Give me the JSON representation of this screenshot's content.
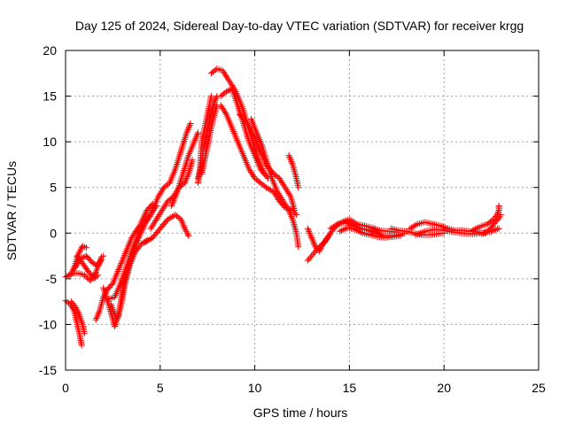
{
  "chart_data": {
    "type": "scatter",
    "title": "Day 125 of 2024, Sidereal Day-to-day VTEC variation (SDTVAR) for receiver krgg",
    "xlabel": "GPS time / hours",
    "ylabel": "SDTVAR / TECUs",
    "xlim": [
      0,
      25
    ],
    "ylim": [
      -15,
      20
    ],
    "xticks": [
      0,
      5,
      10,
      15,
      20,
      25
    ],
    "yticks": [
      -15,
      -10,
      -5,
      0,
      5,
      10,
      15,
      20
    ],
    "grid": true,
    "marker": "+",
    "series_color": "#ff0000",
    "tracks": [
      {
        "name": "arc-early-a",
        "points": [
          [
            0.0,
            -4.8
          ],
          [
            0.3,
            -4.5
          ],
          [
            0.5,
            -3.5
          ],
          [
            0.7,
            -2.2
          ],
          [
            0.9,
            -1.4
          ],
          [
            1.1,
            -1.6
          ]
        ]
      },
      {
        "name": "arc-early-b",
        "points": [
          [
            0.0,
            -7.4
          ],
          [
            0.25,
            -7.8
          ],
          [
            0.45,
            -8.5
          ],
          [
            0.6,
            -9.8
          ],
          [
            0.75,
            -11.2
          ],
          [
            0.85,
            -12.3
          ]
        ]
      },
      {
        "name": "arc-early-c",
        "points": [
          [
            0.3,
            -7.5
          ],
          [
            0.5,
            -8.0
          ],
          [
            0.7,
            -8.8
          ],
          [
            0.9,
            -10.0
          ],
          [
            1.0,
            -11.0
          ]
        ]
      },
      {
        "name": "arc-early-d",
        "points": [
          [
            0.5,
            -3.8
          ],
          [
            0.8,
            -2.8
          ],
          [
            1.1,
            -2.5
          ],
          [
            1.4,
            -3.2
          ],
          [
            1.7,
            -3.6
          ],
          [
            1.9,
            -2.9
          ]
        ]
      },
      {
        "name": "arc-early-e",
        "points": [
          [
            0.6,
            -2.5
          ],
          [
            0.9,
            -3.3
          ],
          [
            1.2,
            -4.2
          ],
          [
            1.5,
            -5.0
          ],
          [
            1.7,
            -4.6
          ]
        ]
      },
      {
        "name": "arc-early-f",
        "points": [
          [
            0.3,
            -4.4
          ],
          [
            0.7,
            -4.4
          ],
          [
            1.0,
            -4.6
          ],
          [
            1.3,
            -5.2
          ],
          [
            1.6,
            -4.3
          ],
          [
            1.9,
            -2.6
          ],
          [
            2.0,
            -2.5
          ]
        ]
      },
      {
        "name": "arc-dip-a",
        "points": [
          [
            1.6,
            -9.5
          ],
          [
            1.8,
            -8.5
          ],
          [
            2.0,
            -7.0
          ],
          [
            2.2,
            -6.2
          ],
          [
            2.5,
            -5.5
          ],
          [
            2.8,
            -4.0
          ],
          [
            3.0,
            -3.0
          ],
          [
            3.3,
            -1.5
          ],
          [
            3.5,
            -0.5
          ],
          [
            3.8,
            0.5
          ],
          [
            4.0,
            1.0
          ]
        ]
      },
      {
        "name": "arc-dip-b",
        "points": [
          [
            2.0,
            -6.0
          ],
          [
            2.3,
            -8.0
          ],
          [
            2.6,
            -10.2
          ],
          [
            2.8,
            -9.0
          ],
          [
            3.0,
            -6.5
          ],
          [
            3.2,
            -4.5
          ],
          [
            3.5,
            -2.5
          ],
          [
            3.8,
            -0.8
          ],
          [
            4.2,
            1.0
          ],
          [
            4.5,
            2.0
          ],
          [
            4.8,
            3.0
          ]
        ]
      },
      {
        "name": "arc-dip-c",
        "points": [
          [
            2.3,
            -7.2
          ],
          [
            2.6,
            -7.0
          ],
          [
            2.9,
            -5.5
          ],
          [
            3.2,
            -3.8
          ],
          [
            3.5,
            -2.0
          ],
          [
            3.8,
            -0.5
          ],
          [
            4.0,
            1.2
          ],
          [
            4.3,
            2.5
          ],
          [
            4.6,
            3.2
          ]
        ]
      },
      {
        "name": "arc-dip-d",
        "points": [
          [
            2.4,
            -7.8
          ],
          [
            2.7,
            -9.5
          ],
          [
            2.9,
            -8.2
          ],
          [
            3.1,
            -6.0
          ],
          [
            3.4,
            -3.5
          ],
          [
            3.7,
            -2.0
          ],
          [
            4.0,
            -1.2
          ],
          [
            4.3,
            -0.8
          ]
        ]
      },
      {
        "name": "arc-rise-a",
        "points": [
          [
            4.0,
            0.5
          ],
          [
            4.3,
            1.5
          ],
          [
            4.6,
            2.5
          ],
          [
            4.9,
            4.0
          ],
          [
            5.2,
            5.0
          ],
          [
            5.5,
            5.5
          ],
          [
            5.8,
            7.0
          ],
          [
            6.1,
            9.0
          ],
          [
            6.4,
            11.0
          ],
          [
            6.6,
            12.0
          ]
        ]
      },
      {
        "name": "arc-rise-b",
        "points": [
          [
            4.5,
            0.5
          ],
          [
            4.8,
            1.5
          ],
          [
            5.1,
            2.5
          ],
          [
            5.4,
            3.5
          ],
          [
            5.7,
            4.0
          ],
          [
            6.0,
            5.0
          ],
          [
            6.3,
            5.5
          ],
          [
            6.5,
            6.5
          ],
          [
            6.7,
            8.0
          ]
        ]
      },
      {
        "name": "arc-rise-c",
        "points": [
          [
            4.2,
            -1.0
          ],
          [
            4.6,
            -0.5
          ],
          [
            5.0,
            0.5
          ],
          [
            5.4,
            1.5
          ],
          [
            5.8,
            2.0
          ],
          [
            6.1,
            1.5
          ],
          [
            6.3,
            0.5
          ],
          [
            6.5,
            -0.3
          ]
        ]
      },
      {
        "name": "arc-rise-d",
        "points": [
          [
            5.6,
            3.0
          ],
          [
            5.9,
            4.5
          ],
          [
            6.2,
            6.5
          ],
          [
            6.5,
            8.5
          ],
          [
            6.8,
            10.0
          ],
          [
            7.0,
            11.0
          ]
        ]
      },
      {
        "name": "arc-rise-e",
        "points": [
          [
            7.0,
            6.0
          ],
          [
            7.2,
            7.5
          ],
          [
            7.3,
            9.5
          ],
          [
            7.5,
            11.5
          ],
          [
            7.7,
            13.0
          ],
          [
            7.9,
            14.5
          ],
          [
            8.0,
            15.0
          ]
        ]
      },
      {
        "name": "arc-rise-f",
        "points": [
          [
            7.2,
            6.5
          ],
          [
            7.4,
            8.5
          ],
          [
            7.6,
            10.5
          ],
          [
            7.8,
            12.5
          ],
          [
            8.0,
            14.0
          ]
        ]
      },
      {
        "name": "arc-rise-g",
        "points": [
          [
            7.0,
            5.5
          ],
          [
            7.1,
            7.0
          ],
          [
            7.2,
            10.0
          ],
          [
            7.4,
            12.0
          ],
          [
            7.6,
            14.0
          ],
          [
            7.7,
            15.0
          ]
        ]
      },
      {
        "name": "arc-peak-a",
        "points": [
          [
            7.7,
            17.5
          ],
          [
            8.0,
            18.0
          ],
          [
            8.3,
            17.8
          ],
          [
            8.7,
            16.5
          ],
          [
            9.0,
            15.5
          ],
          [
            9.3,
            14.0
          ],
          [
            9.6,
            12.0
          ],
          [
            9.9,
            10.0
          ],
          [
            10.2,
            8.0
          ],
          [
            10.5,
            6.5
          ]
        ]
      },
      {
        "name": "arc-peak-b",
        "points": [
          [
            8.2,
            15.0
          ],
          [
            8.5,
            15.5
          ],
          [
            8.8,
            15.8
          ],
          [
            9.1,
            14.0
          ],
          [
            9.4,
            12.0
          ],
          [
            9.7,
            10.0
          ],
          [
            10.0,
            8.5
          ],
          [
            10.3,
            7.0
          ],
          [
            10.7,
            6.0
          ]
        ]
      },
      {
        "name": "arc-peak-c",
        "points": [
          [
            8.2,
            14.0
          ],
          [
            8.5,
            13.0
          ],
          [
            8.8,
            11.5
          ],
          [
            9.1,
            10.0
          ],
          [
            9.4,
            8.5
          ],
          [
            9.7,
            7.0
          ],
          [
            10.0,
            6.0
          ],
          [
            10.3,
            5.5
          ],
          [
            10.6,
            5.0
          ],
          [
            11.0,
            4.5
          ],
          [
            11.3,
            3.5
          ],
          [
            11.6,
            2.8
          ],
          [
            12.0,
            2.5
          ],
          [
            12.2,
            2.0
          ]
        ]
      },
      {
        "name": "arc-peak-d",
        "points": [
          [
            9.2,
            13.0
          ],
          [
            9.6,
            12.0
          ],
          [
            10.0,
            10.5
          ],
          [
            10.3,
            9.0
          ],
          [
            10.6,
            7.5
          ],
          [
            11.0,
            6.5
          ],
          [
            11.3,
            6.0
          ],
          [
            11.6,
            5.0
          ],
          [
            11.9,
            4.0
          ],
          [
            12.1,
            2.5
          ]
        ]
      },
      {
        "name": "arc-peak-e",
        "points": [
          [
            9.8,
            12.5
          ],
          [
            10.1,
            11.0
          ],
          [
            10.4,
            9.5
          ],
          [
            10.6,
            8.0
          ],
          [
            10.9,
            6.0
          ],
          [
            11.2,
            4.5
          ],
          [
            11.5,
            3.5
          ],
          [
            11.8,
            2.5
          ],
          [
            12.0,
            1.5
          ],
          [
            12.2,
            0.0
          ],
          [
            12.3,
            -1.5
          ]
        ]
      },
      {
        "name": "arc-peak-f",
        "points": [
          [
            11.8,
            8.5
          ],
          [
            12.0,
            7.5
          ],
          [
            12.2,
            6.0
          ],
          [
            12.3,
            5.0
          ]
        ]
      },
      {
        "name": "arc-evening-a",
        "points": [
          [
            12.8,
            0.5
          ],
          [
            13.0,
            -0.5
          ],
          [
            13.2,
            -1.5
          ],
          [
            13.4,
            -2.0
          ],
          [
            13.6,
            -1.2
          ],
          [
            13.8,
            -0.6
          ],
          [
            14.0,
            0.0
          ]
        ]
      },
      {
        "name": "arc-evening-b",
        "points": [
          [
            12.8,
            -3.0
          ],
          [
            13.0,
            -2.5
          ],
          [
            13.2,
            -2.0
          ],
          [
            13.4,
            -1.5
          ],
          [
            13.7,
            -1.0
          ],
          [
            14.0,
            0.0
          ],
          [
            14.3,
            0.8
          ],
          [
            14.6,
            1.2
          ],
          [
            15.0,
            1.5
          ],
          [
            15.4,
            1.0
          ],
          [
            15.8,
            0.8
          ],
          [
            16.2,
            0.6
          ],
          [
            16.6,
            0.3
          ],
          [
            17.0,
            0.2
          ],
          [
            17.5,
            0.1
          ]
        ]
      },
      {
        "name": "arc-evening-c",
        "points": [
          [
            14.0,
            0.5
          ],
          [
            14.4,
            1.0
          ],
          [
            14.8,
            1.2
          ],
          [
            15.2,
            0.8
          ],
          [
            15.6,
            0.5
          ],
          [
            16.0,
            0.3
          ],
          [
            16.4,
            0.0
          ],
          [
            16.8,
            -0.3
          ],
          [
            17.2,
            -0.3
          ],
          [
            17.6,
            -0.2
          ],
          [
            17.9,
            0.0
          ]
        ]
      },
      {
        "name": "arc-evening-d",
        "points": [
          [
            14.5,
            0.2
          ],
          [
            14.9,
            0.6
          ],
          [
            15.3,
            0.4
          ],
          [
            15.7,
            0.0
          ],
          [
            16.1,
            -0.2
          ],
          [
            16.5,
            -0.4
          ],
          [
            16.9,
            -0.5
          ],
          [
            17.3,
            -0.4
          ],
          [
            17.7,
            -0.3
          ]
        ]
      },
      {
        "name": "arc-night-a",
        "points": [
          [
            17.2,
            0.5
          ],
          [
            17.6,
            0.3
          ],
          [
            18.0,
            0.2
          ],
          [
            18.4,
            0.0
          ],
          [
            18.8,
            -0.2
          ],
          [
            19.2,
            -0.2
          ],
          [
            19.6,
            -0.1
          ],
          [
            20.0,
            0.0
          ]
        ]
      },
      {
        "name": "arc-night-b",
        "points": [
          [
            18.2,
            0.5
          ],
          [
            18.6,
            1.0
          ],
          [
            19.0,
            1.2
          ],
          [
            19.4,
            1.0
          ],
          [
            19.8,
            0.8
          ],
          [
            20.2,
            0.5
          ],
          [
            20.6,
            0.3
          ],
          [
            21.0,
            0.3
          ],
          [
            21.4,
            0.2
          ],
          [
            21.8,
            0.1
          ],
          [
            22.2,
            0.0
          ]
        ]
      },
      {
        "name": "arc-night-c",
        "points": [
          [
            18.5,
            -0.2
          ],
          [
            19.0,
            0.2
          ],
          [
            19.5,
            0.4
          ],
          [
            20.0,
            0.3
          ],
          [
            20.5,
            0.1
          ],
          [
            21.0,
            0.0
          ],
          [
            21.5,
            -0.1
          ],
          [
            22.0,
            0.0
          ],
          [
            22.5,
            0.2
          ],
          [
            22.9,
            0.5
          ]
        ]
      },
      {
        "name": "arc-night-d",
        "points": [
          [
            21.5,
            0.3
          ],
          [
            21.8,
            0.6
          ],
          [
            22.0,
            0.8
          ],
          [
            22.3,
            1.0
          ],
          [
            22.6,
            1.5
          ],
          [
            22.8,
            2.0
          ],
          [
            22.9,
            2.5
          ],
          [
            22.9,
            3.0
          ]
        ]
      },
      {
        "name": "arc-night-e",
        "points": [
          [
            22.0,
            -0.1
          ],
          [
            22.3,
            0.2
          ],
          [
            22.5,
            0.6
          ],
          [
            22.7,
            1.2
          ],
          [
            22.9,
            1.6
          ],
          [
            23.0,
            2.0
          ]
        ]
      }
    ]
  }
}
